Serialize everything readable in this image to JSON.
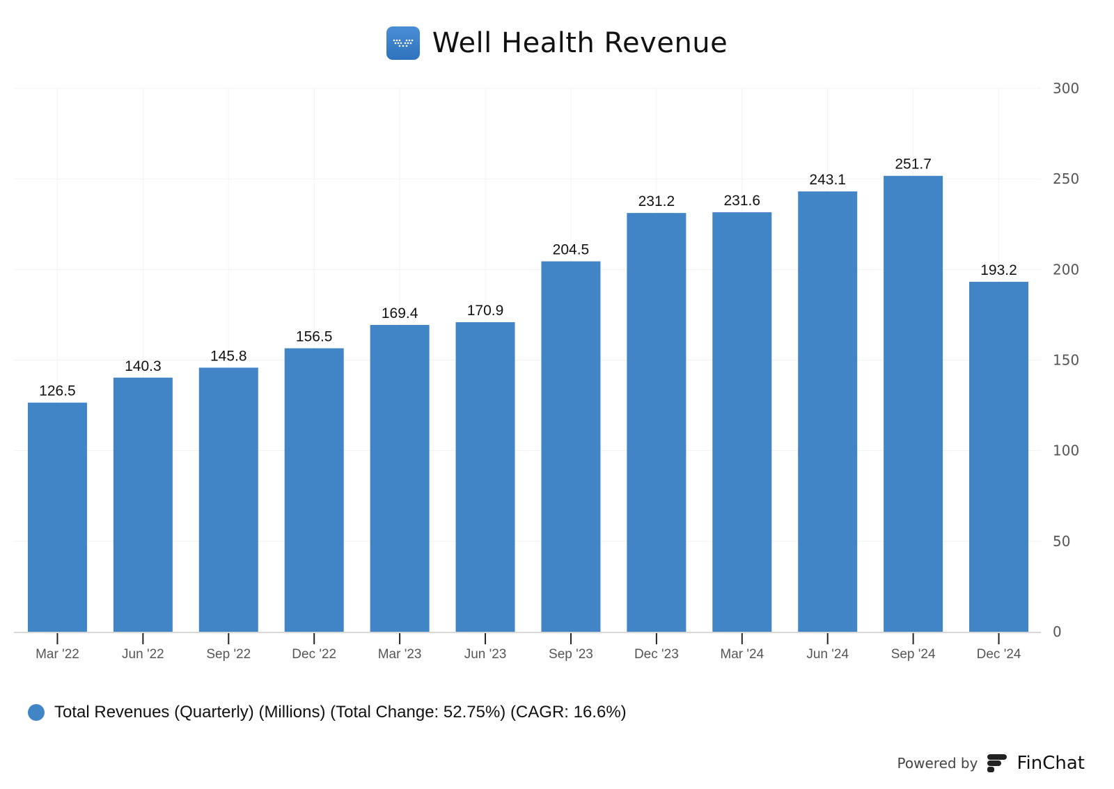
{
  "header": {
    "title": "Well Health Revenue",
    "logo_icon": "well-health-logo-icon"
  },
  "chart_data": {
    "type": "bar",
    "title": "Well Health Revenue",
    "categories": [
      "Mar '22",
      "Jun '22",
      "Sep '22",
      "Dec '22",
      "Mar '23",
      "Jun '23",
      "Sep '23",
      "Dec '23",
      "Mar '24",
      "Jun '24",
      "Sep '24",
      "Dec '24"
    ],
    "values": [
      126.5,
      140.3,
      145.8,
      156.5,
      169.4,
      170.9,
      204.5,
      231.2,
      231.6,
      243.1,
      251.7,
      193.2
    ],
    "value_labels": [
      "126.5",
      "140.3",
      "145.8",
      "156.5",
      "169.4",
      "170.9",
      "204.5",
      "231.2",
      "231.6",
      "243.1",
      "251.7",
      "193.2"
    ],
    "xlabel": "",
    "ylabel": "",
    "ylim": [
      0,
      300
    ],
    "yticks": [
      "0",
      "50",
      "100",
      "150",
      "200",
      "250",
      "300"
    ],
    "yaxis_position": "right",
    "grid": true,
    "legend_position": "bottom-left",
    "series": [
      {
        "name": "Total Revenues (Quarterly) (Millions) (Total Change: 52.75%) (CAGR: 16.6%)",
        "color": "#4185c6"
      }
    ]
  },
  "legend": {
    "label": "Total Revenues (Quarterly) (Millions) (Total Change: 52.75%) (CAGR: 16.6%)",
    "color": "#4185c6"
  },
  "footer": {
    "powered_by": "Powered by",
    "brand": "FinChat",
    "brand_icon": "finchat-logo-icon"
  }
}
